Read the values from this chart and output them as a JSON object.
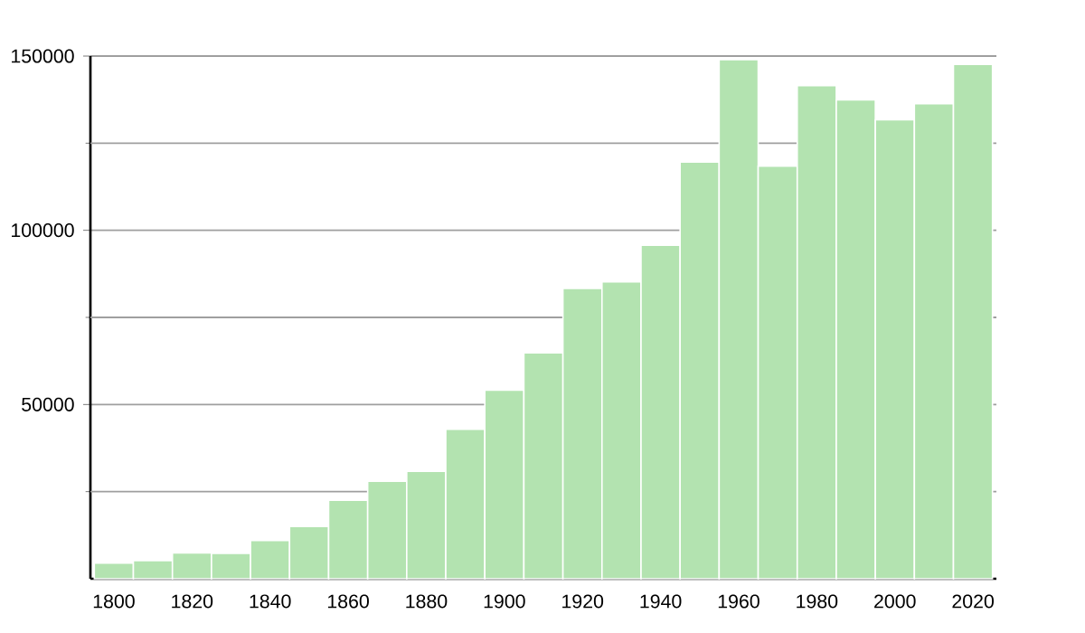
{
  "chart_data": {
    "type": "bar",
    "x": [
      1800,
      1810,
      1820,
      1830,
      1840,
      1850,
      1860,
      1870,
      1880,
      1890,
      1900,
      1910,
      1920,
      1930,
      1940,
      1950,
      1960,
      1970,
      1980,
      1990,
      2000,
      2010,
      2020
    ],
    "values": [
      4500,
      5200,
      7400,
      7300,
      11000,
      15000,
      22500,
      28000,
      30800,
      42900,
      54100,
      64800,
      83300,
      85200,
      95700,
      119600,
      149000,
      118400,
      141500,
      137400,
      131700,
      136300,
      147600
    ],
    "color": "#b3e3b0",
    "xlim": [
      1794,
      2026
    ],
    "xticks": [
      1800,
      1820,
      1840,
      1860,
      1880,
      1900,
      1920,
      1940,
      1960,
      1980,
      2000,
      2020
    ],
    "ylim": [
      0,
      150000
    ],
    "yticks": [
      {
        "value": 25000,
        "label": null
      },
      50000,
      {
        "value": 75000,
        "label": null
      },
      100000,
      {
        "value": 125000,
        "label": null
      },
      150000
    ],
    "grid": "y"
  }
}
